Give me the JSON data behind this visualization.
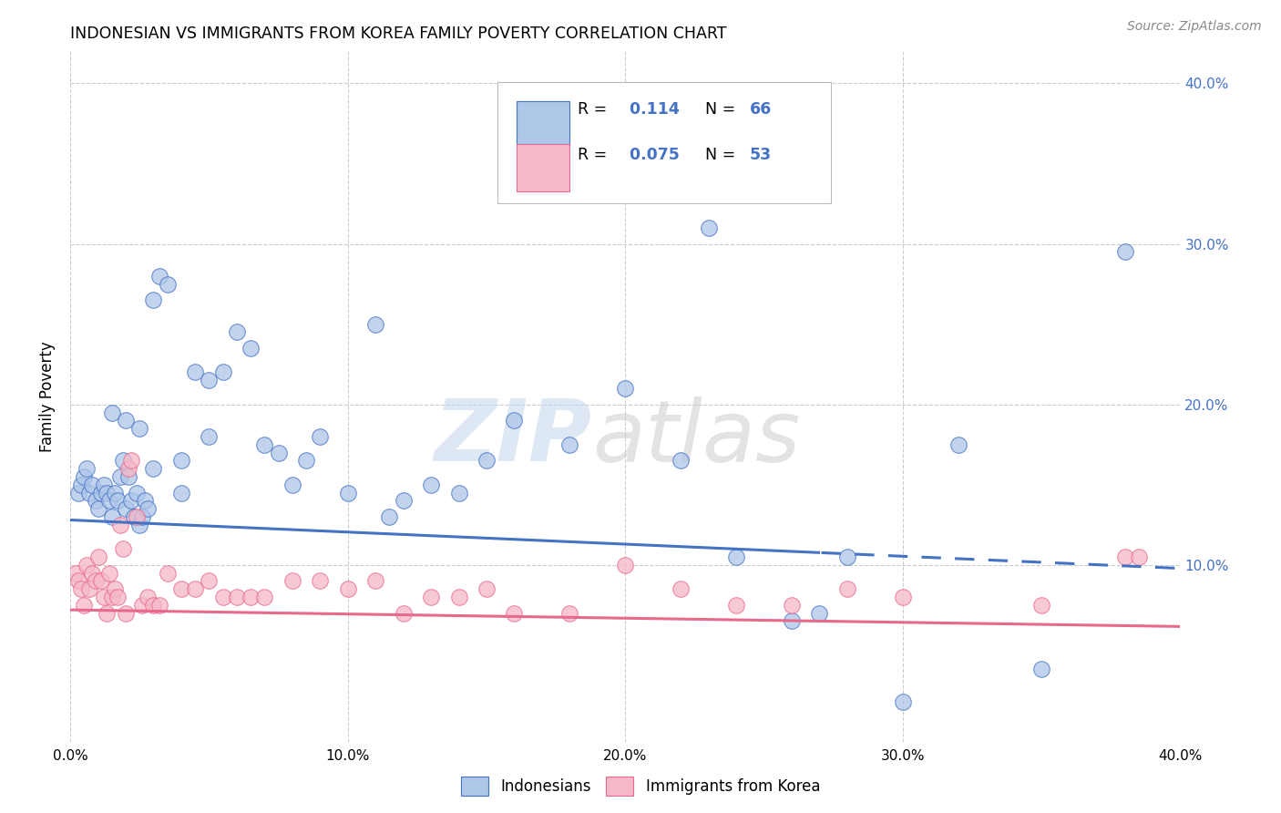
{
  "title": "INDONESIAN VS IMMIGRANTS FROM KOREA FAMILY POVERTY CORRELATION CHART",
  "source": "Source: ZipAtlas.com",
  "ylabel": "Family Poverty",
  "legend_label1": "Indonesians",
  "legend_label2": "Immigrants from Korea",
  "R1": 0.114,
  "N1": 66,
  "R2": 0.075,
  "N2": 53,
  "blue_color": "#aec6e8",
  "pink_color": "#f5b8c8",
  "line_blue": "#4472c4",
  "line_pink": "#e8698a",
  "blue_scatter_x": [
    0.3,
    0.4,
    0.5,
    0.6,
    0.7,
    0.8,
    0.9,
    1.0,
    1.1,
    1.2,
    1.3,
    1.4,
    1.5,
    1.6,
    1.7,
    1.8,
    1.9,
    2.0,
    2.1,
    2.2,
    2.3,
    2.4,
    2.5,
    2.6,
    2.7,
    2.8,
    3.0,
    3.2,
    3.5,
    4.0,
    4.5,
    5.0,
    5.5,
    6.0,
    7.0,
    7.5,
    8.0,
    9.0,
    10.0,
    11.0,
    12.0,
    13.0,
    14.0,
    15.0,
    16.0,
    18.0,
    20.0,
    22.0,
    24.0,
    26.0,
    27.0,
    28.0,
    30.0,
    32.0,
    35.0,
    38.0,
    1.5,
    2.0,
    2.5,
    3.0,
    4.0,
    5.0,
    6.5,
    8.5,
    11.5,
    23.0
  ],
  "blue_scatter_y": [
    14.5,
    15.0,
    15.5,
    16.0,
    14.5,
    15.0,
    14.0,
    13.5,
    14.5,
    15.0,
    14.5,
    14.0,
    13.0,
    14.5,
    14.0,
    15.5,
    16.5,
    13.5,
    15.5,
    14.0,
    13.0,
    14.5,
    12.5,
    13.0,
    14.0,
    13.5,
    26.5,
    28.0,
    27.5,
    14.5,
    22.0,
    21.5,
    22.0,
    24.5,
    17.5,
    17.0,
    15.0,
    18.0,
    14.5,
    25.0,
    14.0,
    15.0,
    14.5,
    16.5,
    19.0,
    17.5,
    21.0,
    16.5,
    10.5,
    6.5,
    7.0,
    10.5,
    1.5,
    17.5,
    3.5,
    29.5,
    19.5,
    19.0,
    18.5,
    16.0,
    16.5,
    18.0,
    23.5,
    16.5,
    13.0,
    31.0
  ],
  "pink_scatter_x": [
    0.2,
    0.3,
    0.4,
    0.5,
    0.6,
    0.7,
    0.8,
    0.9,
    1.0,
    1.1,
    1.2,
    1.3,
    1.4,
    1.5,
    1.6,
    1.7,
    1.8,
    1.9,
    2.0,
    2.1,
    2.2,
    2.4,
    2.6,
    2.8,
    3.0,
    3.2,
    3.5,
    4.0,
    4.5,
    5.0,
    5.5,
    6.0,
    6.5,
    7.0,
    8.0,
    9.0,
    10.0,
    11.0,
    12.0,
    13.0,
    14.0,
    15.0,
    16.0,
    18.0,
    20.0,
    22.0,
    24.0,
    26.0,
    28.0,
    30.0,
    35.0,
    38.0,
    38.5
  ],
  "pink_scatter_y": [
    9.5,
    9.0,
    8.5,
    7.5,
    10.0,
    8.5,
    9.5,
    9.0,
    10.5,
    9.0,
    8.0,
    7.0,
    9.5,
    8.0,
    8.5,
    8.0,
    12.5,
    11.0,
    7.0,
    16.0,
    16.5,
    13.0,
    7.5,
    8.0,
    7.5,
    7.5,
    9.5,
    8.5,
    8.5,
    9.0,
    8.0,
    8.0,
    8.0,
    8.0,
    9.0,
    9.0,
    8.5,
    9.0,
    7.0,
    8.0,
    8.0,
    8.5,
    7.0,
    7.0,
    10.0,
    8.5,
    7.5,
    7.5,
    8.5,
    8.0,
    7.5,
    10.5,
    10.5
  ],
  "watermark_zip": "ZIP",
  "watermark_atlas": "atlas",
  "background_color": "#ffffff",
  "grid_color": "#cccccc",
  "dashed_after_x": 27.0,
  "x_intercept_blue": 12.8,
  "x_intercept_pink": 7.2,
  "xlim": [
    0,
    40
  ],
  "ylim": [
    -1,
    42
  ],
  "xtick_vals": [
    0,
    10,
    20,
    30,
    40
  ],
  "ytick_vals": [
    10,
    20,
    30,
    40
  ]
}
